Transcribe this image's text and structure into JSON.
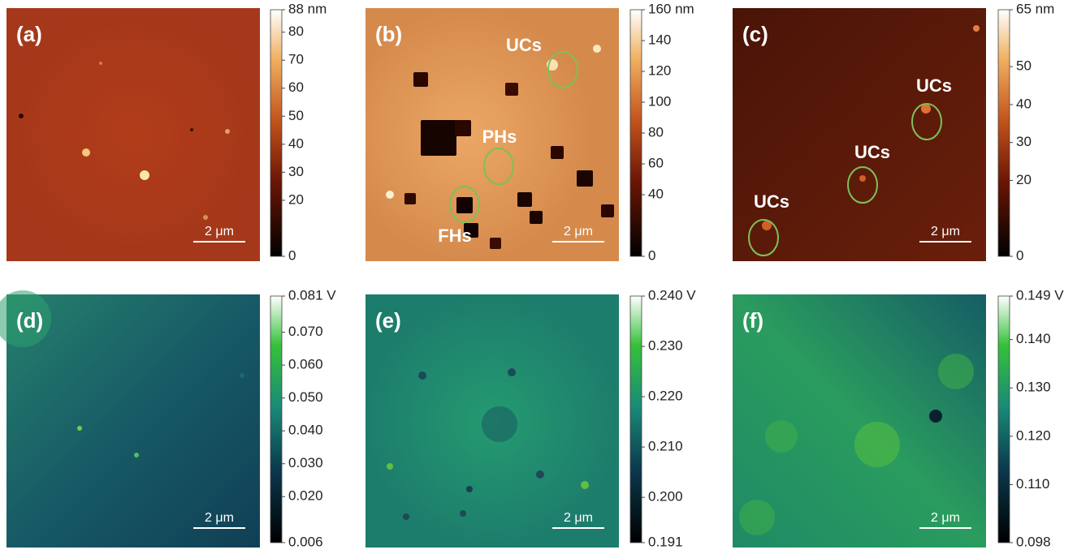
{
  "panels": [
    {
      "label": "(a)",
      "scale_bar": "2 μm",
      "colormap": "afm",
      "colorbar": {
        "lim": [
          0,
          88
        ],
        "ticks": [
          {
            "value": 88,
            "label": "88 nm"
          },
          80,
          70,
          60,
          50,
          40,
          30,
          20,
          0
        ]
      },
      "annotations": []
    },
    {
      "label": "(b)",
      "scale_bar": "2 μm",
      "colormap": "afm",
      "colorbar": {
        "lim": [
          0,
          160
        ],
        "ticks": [
          {
            "value": 160,
            "label": "160 nm"
          },
          140,
          120,
          100,
          80,
          60,
          40,
          0
        ]
      },
      "annotations": [
        "UCs",
        "PHs",
        "FHs"
      ]
    },
    {
      "label": "(c)",
      "scale_bar": "2 μm",
      "colormap": "afm",
      "colorbar": {
        "lim": [
          0,
          65
        ],
        "ticks": [
          {
            "value": 65,
            "label": "65 nm"
          },
          50,
          40,
          30,
          20,
          0
        ]
      },
      "annotations": [
        "UCs",
        "UCs",
        "UCs"
      ]
    },
    {
      "label": "(d)",
      "scale_bar": "2 μm",
      "colormap": "kpfm",
      "colorbar": {
        "lim": [
          0.006,
          0.081
        ],
        "ticks": [
          {
            "value": 0.081,
            "label": "0.081 V"
          },
          {
            "value": 0.07,
            "label": "0.070"
          },
          {
            "value": 0.06,
            "label": "0.060"
          },
          {
            "value": 0.05,
            "label": "0.050"
          },
          {
            "value": 0.04,
            "label": "0.040"
          },
          {
            "value": 0.03,
            "label": "0.030"
          },
          {
            "value": 0.02,
            "label": "0.020"
          },
          0.006
        ]
      },
      "annotations": []
    },
    {
      "label": "(e)",
      "scale_bar": "2 μm",
      "colormap": "kpfm",
      "colorbar": {
        "lim": [
          0.191,
          0.24
        ],
        "ticks": [
          {
            "value": 0.24,
            "label": "0.240 V"
          },
          {
            "value": 0.23,
            "label": "0.230"
          },
          {
            "value": 0.22,
            "label": "0.220"
          },
          {
            "value": 0.21,
            "label": "0.210"
          },
          {
            "value": 0.2,
            "label": "0.200"
          },
          0.191
        ]
      },
      "annotations": []
    },
    {
      "label": "(f)",
      "scale_bar": "2 μm",
      "colormap": "kpfm",
      "colorbar": {
        "lim": [
          0.098,
          0.149
        ],
        "ticks": [
          {
            "value": 0.149,
            "label": "0.149 V"
          },
          {
            "value": 0.14,
            "label": "0.140"
          },
          {
            "value": 0.13,
            "label": "0.130"
          },
          {
            "value": 0.12,
            "label": "0.120"
          },
          {
            "value": 0.11,
            "label": "0.110"
          },
          0.098
        ]
      },
      "annotations": []
    }
  ]
}
